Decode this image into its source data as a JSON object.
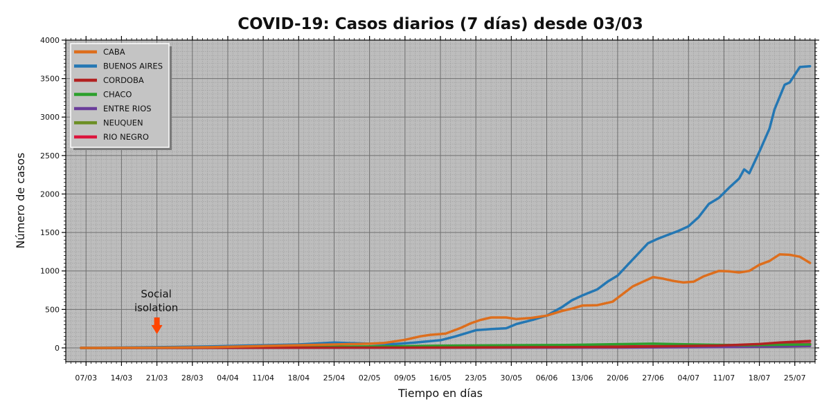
{
  "chart_data": {
    "type": "line",
    "title": "COVID-19: Casos diarios (7 días) desde 03/03",
    "xlabel": "Tiempo en días",
    "ylabel": "Número de casos",
    "ylim": [
      -180,
      4000
    ],
    "yticks": [
      0,
      500,
      1000,
      1500,
      2000,
      2500,
      3000,
      3500,
      4000
    ],
    "xrange": [
      "2020-03-03",
      "2020-07-29"
    ],
    "xticks": [
      {
        "date": "2020-03-07",
        "label": "07/03"
      },
      {
        "date": "2020-03-14",
        "label": "14/03"
      },
      {
        "date": "2020-03-21",
        "label": "21/03"
      },
      {
        "date": "2020-03-28",
        "label": "28/03"
      },
      {
        "date": "2020-04-04",
        "label": "04/04"
      },
      {
        "date": "2020-04-11",
        "label": "11/04"
      },
      {
        "date": "2020-04-18",
        "label": "18/04"
      },
      {
        "date": "2020-04-25",
        "label": "25/04"
      },
      {
        "date": "2020-05-02",
        "label": "02/05"
      },
      {
        "date": "2020-05-09",
        "label": "09/05"
      },
      {
        "date": "2020-05-16",
        "label": "16/05"
      },
      {
        "date": "2020-05-23",
        "label": "23/05"
      },
      {
        "date": "2020-05-30",
        "label": "30/05"
      },
      {
        "date": "2020-06-06",
        "label": "06/06"
      },
      {
        "date": "2020-06-13",
        "label": "13/06"
      },
      {
        "date": "2020-06-20",
        "label": "20/06"
      },
      {
        "date": "2020-06-27",
        "label": "27/06"
      },
      {
        "date": "2020-07-04",
        "label": "04/07"
      },
      {
        "date": "2020-07-11",
        "label": "11/07"
      },
      {
        "date": "2020-07-18",
        "label": "18/07"
      },
      {
        "date": "2020-07-25",
        "label": "25/07"
      }
    ],
    "grid": true,
    "legend_position": "top-left",
    "annotation": {
      "text_lines": [
        "Social",
        "isolation"
      ],
      "date": "2020-03-21",
      "arrow_color": "#ff4500"
    },
    "series": [
      {
        "name": "CABA",
        "color": "#dd6e1d",
        "points": [
          [
            "2020-03-06",
            0
          ],
          [
            "2020-03-21",
            3
          ],
          [
            "2020-04-01",
            10
          ],
          [
            "2020-04-11",
            25
          ],
          [
            "2020-04-18",
            35
          ],
          [
            "2020-04-25",
            45
          ],
          [
            "2020-05-02",
            55
          ],
          [
            "2020-05-05",
            65
          ],
          [
            "2020-05-09",
            105
          ],
          [
            "2020-05-12",
            150
          ],
          [
            "2020-05-14",
            170
          ],
          [
            "2020-05-17",
            185
          ],
          [
            "2020-05-20",
            260
          ],
          [
            "2020-05-22",
            320
          ],
          [
            "2020-05-24",
            365
          ],
          [
            "2020-05-26",
            395
          ],
          [
            "2020-05-29",
            395
          ],
          [
            "2020-05-31",
            375
          ],
          [
            "2020-06-03",
            390
          ],
          [
            "2020-06-06",
            420
          ],
          [
            "2020-06-09",
            480
          ],
          [
            "2020-06-11",
            510
          ],
          [
            "2020-06-13",
            550
          ],
          [
            "2020-06-16",
            555
          ],
          [
            "2020-06-19",
            600
          ],
          [
            "2020-06-21",
            700
          ],
          [
            "2020-06-23",
            800
          ],
          [
            "2020-06-25",
            860
          ],
          [
            "2020-06-27",
            920
          ],
          [
            "2020-06-29",
            900
          ],
          [
            "2020-07-01",
            870
          ],
          [
            "2020-07-03",
            850
          ],
          [
            "2020-07-05",
            860
          ],
          [
            "2020-07-07",
            930
          ],
          [
            "2020-07-10",
            1000
          ],
          [
            "2020-07-12",
            995
          ],
          [
            "2020-07-14",
            980
          ],
          [
            "2020-07-16",
            1000
          ],
          [
            "2020-07-18",
            1080
          ],
          [
            "2020-07-20",
            1130
          ],
          [
            "2020-07-22",
            1215
          ],
          [
            "2020-07-24",
            1210
          ],
          [
            "2020-07-26",
            1185
          ],
          [
            "2020-07-28",
            1105
          ]
        ]
      },
      {
        "name": "BUENOS AIRES",
        "color": "#2477b3",
        "points": [
          [
            "2020-03-06",
            0
          ],
          [
            "2020-03-21",
            10
          ],
          [
            "2020-04-01",
            20
          ],
          [
            "2020-04-11",
            35
          ],
          [
            "2020-04-18",
            45
          ],
          [
            "2020-04-25",
            70
          ],
          [
            "2020-05-02",
            55
          ],
          [
            "2020-05-07",
            50
          ],
          [
            "2020-05-11",
            70
          ],
          [
            "2020-05-16",
            100
          ],
          [
            "2020-05-19",
            150
          ],
          [
            "2020-05-23",
            230
          ],
          [
            "2020-05-26",
            245
          ],
          [
            "2020-05-29",
            255
          ],
          [
            "2020-05-31",
            310
          ],
          [
            "2020-06-03",
            360
          ],
          [
            "2020-06-06",
            420
          ],
          [
            "2020-06-09",
            530
          ],
          [
            "2020-06-11",
            620
          ],
          [
            "2020-06-13",
            680
          ],
          [
            "2020-06-16",
            760
          ],
          [
            "2020-06-18",
            860
          ],
          [
            "2020-06-20",
            940
          ],
          [
            "2020-06-22",
            1080
          ],
          [
            "2020-06-24",
            1220
          ],
          [
            "2020-06-26",
            1360
          ],
          [
            "2020-06-28",
            1420
          ],
          [
            "2020-06-30",
            1470
          ],
          [
            "2020-07-02",
            1520
          ],
          [
            "2020-07-04",
            1580
          ],
          [
            "2020-07-06",
            1700
          ],
          [
            "2020-07-08",
            1870
          ],
          [
            "2020-07-10",
            1950
          ],
          [
            "2020-07-12",
            2080
          ],
          [
            "2020-07-14",
            2200
          ],
          [
            "2020-07-15",
            2320
          ],
          [
            "2020-07-16",
            2270
          ],
          [
            "2020-07-18",
            2550
          ],
          [
            "2020-07-20",
            2850
          ],
          [
            "2020-07-21",
            3100
          ],
          [
            "2020-07-23",
            3420
          ],
          [
            "2020-07-24",
            3450
          ],
          [
            "2020-07-26",
            3650
          ],
          [
            "2020-07-28",
            3660
          ]
        ]
      },
      {
        "name": "CORDOBA",
        "color": "#b22222",
        "points": [
          [
            "2020-03-06",
            0
          ],
          [
            "2020-05-16",
            4
          ],
          [
            "2020-06-20",
            12
          ],
          [
            "2020-07-10",
            30
          ],
          [
            "2020-07-18",
            50
          ],
          [
            "2020-07-22",
            70
          ],
          [
            "2020-07-25",
            80
          ],
          [
            "2020-07-28",
            90
          ]
        ]
      },
      {
        "name": "CHACO",
        "color": "#2ca02c",
        "points": [
          [
            "2020-03-06",
            0
          ],
          [
            "2020-04-15",
            10
          ],
          [
            "2020-05-05",
            20
          ],
          [
            "2020-05-20",
            30
          ],
          [
            "2020-06-10",
            38
          ],
          [
            "2020-06-27",
            55
          ],
          [
            "2020-07-05",
            45
          ],
          [
            "2020-07-15",
            35
          ],
          [
            "2020-07-28",
            45
          ]
        ]
      },
      {
        "name": "ENTRE RIOS",
        "color": "#6a3d9a",
        "points": [
          [
            "2020-03-06",
            0
          ],
          [
            "2020-06-20",
            4
          ],
          [
            "2020-07-15",
            12
          ],
          [
            "2020-07-28",
            25
          ]
        ]
      },
      {
        "name": "NEUQUEN",
        "color": "#6b8e23",
        "points": [
          [
            "2020-03-06",
            0
          ],
          [
            "2020-06-01",
            6
          ],
          [
            "2020-06-27",
            15
          ],
          [
            "2020-07-15",
            30
          ],
          [
            "2020-07-28",
            40
          ]
        ]
      },
      {
        "name": "RIO NEGRO",
        "color": "#dc143c",
        "points": [
          [
            "2020-03-06",
            0
          ],
          [
            "2020-05-01",
            5
          ],
          [
            "2020-06-10",
            15
          ],
          [
            "2020-06-27",
            22
          ],
          [
            "2020-07-15",
            30
          ],
          [
            "2020-07-28",
            55
          ]
        ]
      }
    ]
  }
}
